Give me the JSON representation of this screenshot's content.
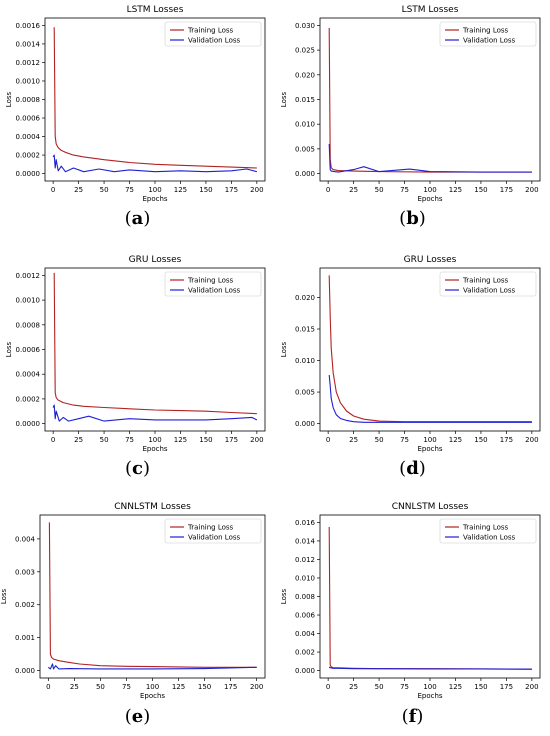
{
  "figure": {
    "colors": {
      "training": "#b22222",
      "validation": "#1f1fd6",
      "axis": "#000000"
    },
    "captions": [
      "a",
      "b",
      "c",
      "d",
      "e",
      "f"
    ]
  },
  "chart_data": [
    {
      "type": "line",
      "panel": "a",
      "title": "LSTM Losses",
      "xlabel": "Epochs",
      "ylabel": "Loss",
      "xlim": [
        0,
        200
      ],
      "ylim": [
        0,
        0.0016
      ],
      "xticks": [
        0,
        25,
        50,
        75,
        100,
        125,
        150,
        175,
        200
      ],
      "yticks": [
        0.0,
        0.0002,
        0.0004,
        0.0006,
        0.0008,
        0.001,
        0.0012,
        0.0014,
        0.0016
      ],
      "ytick_labels": [
        "0.0000",
        "0.0002",
        "0.0004",
        "0.0006",
        "0.0008",
        "0.0010",
        "0.0012",
        "0.0014",
        "0.0016"
      ],
      "legend": "top-right",
      "series": [
        {
          "name": "Training Loss",
          "x": [
            1,
            2,
            3,
            5,
            8,
            12,
            20,
            30,
            50,
            75,
            100,
            125,
            150,
            175,
            200
          ],
          "y": [
            0.00158,
            0.0004,
            0.00032,
            0.00028,
            0.00025,
            0.00023,
            0.0002,
            0.00018,
            0.00015,
            0.00012,
            0.0001,
            9e-05,
            8e-05,
            7e-05,
            6e-05
          ]
        },
        {
          "name": "Validation Loss",
          "x": [
            0,
            1,
            2,
            3,
            5,
            8,
            12,
            20,
            30,
            45,
            60,
            75,
            100,
            125,
            150,
            175,
            190,
            200
          ],
          "y": [
            0.00018,
            0.0002,
            6e-05,
            0.00015,
            3e-05,
            8e-05,
            2e-05,
            6e-05,
            2e-05,
            5e-05,
            2e-05,
            4e-05,
            2e-05,
            3e-05,
            2e-05,
            3e-05,
            5e-05,
            2e-05
          ]
        }
      ]
    },
    {
      "type": "line",
      "panel": "b",
      "title": "LSTM Losses",
      "xlabel": "Epochs",
      "ylabel": "Loss",
      "xlim": [
        0,
        200
      ],
      "ylim": [
        0,
        0.03
      ],
      "xticks": [
        0,
        25,
        50,
        75,
        100,
        125,
        150,
        175,
        200
      ],
      "yticks": [
        0.0,
        0.005,
        0.01,
        0.015,
        0.02,
        0.025,
        0.03
      ],
      "ytick_labels": [
        "0.000",
        "0.005",
        "0.010",
        "0.015",
        "0.020",
        "0.025",
        "0.030"
      ],
      "legend": "top-right",
      "series": [
        {
          "name": "Training Loss",
          "x": [
            1,
            2,
            3,
            5,
            10,
            25,
            50,
            100,
            150,
            200
          ],
          "y": [
            0.0295,
            0.003,
            0.0012,
            0.0008,
            0.0006,
            0.0005,
            0.0004,
            0.0003,
            0.0003,
            0.0003
          ]
        },
        {
          "name": "Validation Loss",
          "x": [
            1,
            2,
            3,
            6,
            10,
            25,
            35,
            50,
            80,
            100,
            150,
            200
          ],
          "y": [
            0.006,
            0.0008,
            0.0005,
            0.0004,
            0.0003,
            0.0008,
            0.0014,
            0.0004,
            0.0009,
            0.0004,
            0.0003,
            0.0003
          ]
        }
      ]
    },
    {
      "type": "line",
      "panel": "c",
      "title": "GRU Losses",
      "xlabel": "Epochs",
      "ylabel": "Loss",
      "xlim": [
        0,
        200
      ],
      "ylim": [
        0,
        0.0012
      ],
      "xticks": [
        0,
        25,
        50,
        75,
        100,
        125,
        150,
        175,
        200
      ],
      "yticks": [
        0.0,
        0.0002,
        0.0004,
        0.0006,
        0.0008,
        0.001,
        0.0012
      ],
      "ytick_labels": [
        "0.0000",
        "0.0002",
        "0.0004",
        "0.0006",
        "0.0008",
        "0.0010",
        "0.0012"
      ],
      "legend": "top-right",
      "series": [
        {
          "name": "Training Loss",
          "x": [
            1,
            2,
            3,
            5,
            10,
            20,
            30,
            50,
            75,
            100,
            125,
            150,
            175,
            200
          ],
          "y": [
            0.00122,
            0.00025,
            0.00021,
            0.00019,
            0.00017,
            0.00015,
            0.00014,
            0.00013,
            0.00012,
            0.00011,
            0.000105,
            0.0001,
            9e-05,
            8e-05
          ]
        },
        {
          "name": "Validation Loss",
          "x": [
            0,
            1,
            2,
            3,
            6,
            10,
            15,
            25,
            35,
            50,
            75,
            100,
            125,
            150,
            175,
            195,
            200
          ],
          "y": [
            0.00013,
            0.00015,
            4e-05,
            0.0001,
            2e-05,
            5e-05,
            2e-05,
            4e-05,
            6e-05,
            2e-05,
            4e-05,
            3e-05,
            3e-05,
            3e-05,
            4e-05,
            5e-05,
            3e-05
          ]
        }
      ]
    },
    {
      "type": "line",
      "panel": "d",
      "title": "GRU Losses",
      "xlabel": "Epochs",
      "ylabel": "Loss",
      "xlim": [
        0,
        200
      ],
      "ylim": [
        0,
        0.0235
      ],
      "xticks": [
        0,
        25,
        50,
        75,
        100,
        125,
        150,
        175,
        200
      ],
      "yticks": [
        0.0,
        0.005,
        0.01,
        0.015,
        0.02
      ],
      "ytick_labels": [
        "0.000",
        "0.005",
        "0.010",
        "0.015",
        "0.020"
      ],
      "legend": "top-right",
      "series": [
        {
          "name": "Training Loss",
          "x": [
            1,
            2,
            3,
            5,
            8,
            12,
            18,
            25,
            35,
            50,
            75,
            100,
            150,
            200
          ],
          "y": [
            0.0235,
            0.017,
            0.012,
            0.008,
            0.005,
            0.0033,
            0.002,
            0.0012,
            0.0007,
            0.0004,
            0.0003,
            0.0003,
            0.0003,
            0.0003
          ]
        },
        {
          "name": "Validation Loss",
          "x": [
            1,
            2,
            3,
            5,
            8,
            12,
            18,
            25,
            35,
            50,
            100,
            150,
            200
          ],
          "y": [
            0.0077,
            0.006,
            0.004,
            0.0025,
            0.0014,
            0.0008,
            0.0005,
            0.0003,
            0.0002,
            0.0002,
            0.0002,
            0.0002,
            0.0002
          ]
        }
      ]
    },
    {
      "type": "line",
      "panel": "e",
      "title": "CNNLSTM Losses",
      "xlabel": "Epochs",
      "ylabel": "Loss",
      "xlim": [
        0,
        200
      ],
      "ylim": [
        0,
        0.0045
      ],
      "xticks": [
        0,
        25,
        50,
        75,
        100,
        125,
        150,
        175,
        200
      ],
      "yticks": [
        0.0,
        0.001,
        0.002,
        0.003,
        0.004
      ],
      "ytick_labels": [
        "0.000",
        "0.001",
        "0.002",
        "0.003",
        "0.004"
      ],
      "legend": "top-right",
      "series": [
        {
          "name": "Training Loss",
          "x": [
            1,
            2,
            3,
            5,
            10,
            20,
            30,
            50,
            75,
            100,
            150,
            200
          ],
          "y": [
            0.0045,
            0.0005,
            0.0004,
            0.00035,
            0.0003,
            0.00025,
            0.0002,
            0.00015,
            0.00013,
            0.00012,
            0.0001,
            0.0001
          ]
        },
        {
          "name": "Validation Loss",
          "x": [
            0,
            2,
            4,
            5,
            7,
            10,
            20,
            50,
            100,
            150,
            200
          ],
          "y": [
            0.0001,
            5e-05,
            0.0002,
            5e-05,
            0.00015,
            5e-05,
            6e-05,
            5e-05,
            5e-05,
            6e-05,
            0.0001
          ]
        }
      ]
    },
    {
      "type": "line",
      "panel": "f",
      "title": "CNNLSTM Losses",
      "xlabel": "Epochs",
      "ylabel": "Loss",
      "xlim": [
        0,
        200
      ],
      "ylim": [
        0,
        0.016
      ],
      "xticks": [
        0,
        25,
        50,
        75,
        100,
        125,
        150,
        175,
        200
      ],
      "yticks": [
        0.0,
        0.002,
        0.004,
        0.006,
        0.008,
        0.01,
        0.012,
        0.014,
        0.016
      ],
      "ytick_labels": [
        "0.000",
        "0.002",
        "0.004",
        "0.006",
        "0.008",
        "0.010",
        "0.012",
        "0.014",
        "0.016"
      ],
      "legend": "top-right",
      "series": [
        {
          "name": "Training Loss",
          "x": [
            1,
            2,
            3,
            5,
            10,
            25,
            50,
            100,
            150,
            200
          ],
          "y": [
            0.0155,
            0.0006,
            0.0004,
            0.0003,
            0.0003,
            0.00025,
            0.0002,
            0.0002,
            0.00018,
            0.00015
          ]
        },
        {
          "name": "Validation Loss",
          "x": [
            1,
            2,
            3,
            5,
            10,
            25,
            50,
            100,
            150,
            200
          ],
          "y": [
            0.0004,
            0.0003,
            0.0003,
            0.00025,
            0.00025,
            0.0002,
            0.0002,
            0.00018,
            0.00018,
            0.00015
          ]
        }
      ]
    }
  ]
}
